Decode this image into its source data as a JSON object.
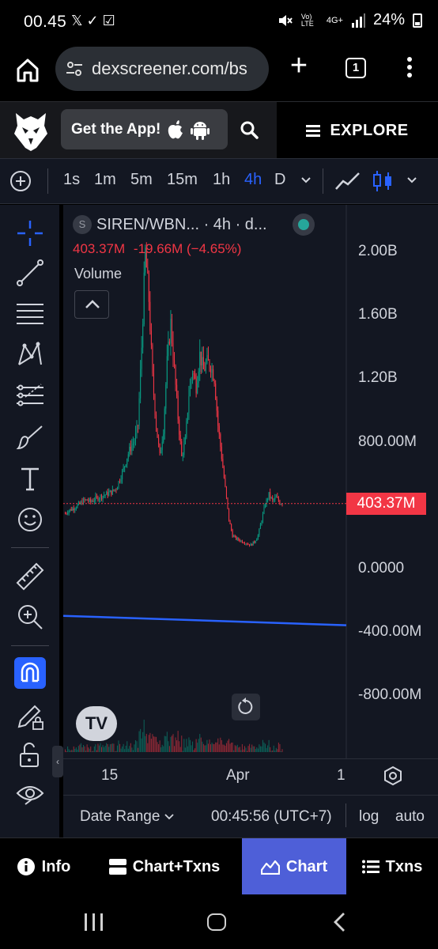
{
  "status_bar": {
    "time": "00.45",
    "notification_icons": "𝕏 ✓ ☑",
    "battery": "24%",
    "network": "4G+",
    "volte": "Vo) LTE"
  },
  "browser": {
    "url": "dexscreener.com/bs",
    "tab_count": "1"
  },
  "site_header": {
    "get_app_label": "Get the App!",
    "explore_label": "EXPLORE"
  },
  "chart_toolbar": {
    "intervals": [
      "1s",
      "1m",
      "5m",
      "15m",
      "1h",
      "4h",
      "D"
    ],
    "active_interval": "4h"
  },
  "chart": {
    "symbol_icon_letter": "S",
    "symbol": "SIREN/WBN... · 4h · d...",
    "ohlc_last": "403.37M",
    "ohlc_change": "-19.66M (−4.65%)",
    "volume_label": "Volume",
    "last_price_tag": "403.37M",
    "tv_logo": "TV",
    "y_axis_labels": [
      "2.00B",
      "1.60B",
      "1.20B",
      "800.00M",
      "0.0000",
      "-400.00M",
      "-800.00M"
    ],
    "x_axis_labels": [
      "15",
      "Apr",
      "1"
    ],
    "bottom_bar": {
      "date_range": "Date Range",
      "time": "00:45:56 (UTC+7)",
      "log": "log",
      "auto": "auto"
    }
  },
  "chart_data": {
    "type": "candlestick",
    "title": "SIREN/WBN... · 4h · d...",
    "y_axis_labels": [
      "2.00B",
      "1.60B",
      "1.20B",
      "800.00M",
      "0.0000",
      "-400.00M",
      "-800.00M"
    ],
    "x_axis_labels": [
      "15",
      "Apr",
      "1"
    ],
    "last_price": 403370000,
    "y_ticks": [
      2000000000,
      1600000000,
      1200000000,
      800000000,
      400000000,
      0,
      -400000000,
      -800000000
    ],
    "close_series": [
      340,
      360,
      370,
      385,
      400,
      420,
      425,
      415,
      430,
      440,
      450,
      460,
      470,
      480,
      500,
      560,
      620,
      700,
      760,
      800,
      900,
      1400,
      2000,
      1700,
      1200,
      900,
      700,
      880,
      1300,
      1550,
      1250,
      950,
      700,
      800,
      1100,
      1250,
      1150,
      1350,
      1250,
      1300,
      1280,
      1200,
      900,
      700,
      500,
      300,
      200,
      180,
      170,
      160,
      150,
      140,
      160,
      200,
      300,
      400,
      460,
      420,
      440,
      410,
      403
    ],
    "down_color": "#f23645",
    "up_color": "#089981",
    "line_color": "#2962ff",
    "line_start": -310000000,
    "line_end": -370000000,
    "price_line_color": "#f23645"
  },
  "bottom_tabs": {
    "info": "Info",
    "chart_txns": "Chart+Txns",
    "chart": "Chart",
    "txns": "Txns",
    "active": "Chart"
  }
}
